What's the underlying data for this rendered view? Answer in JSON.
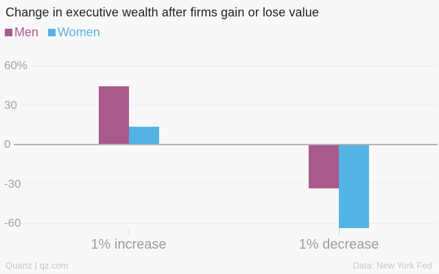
{
  "chart_data": {
    "type": "bar",
    "title": "Change in executive wealth after firms gain or lose value",
    "categories": [
      "1% increase",
      "1% decrease"
    ],
    "series": [
      {
        "name": "Men",
        "color": "#a95a8c",
        "values": [
          44,
          -33
        ]
      },
      {
        "name": "Women",
        "color": "#55b2e4",
        "values": [
          13,
          -63
        ]
      }
    ],
    "y_ticks": [
      60,
      30,
      0,
      -30,
      -60
    ],
    "y_tick_labels": [
      "60%",
      "30",
      "0",
      "-30",
      "-60"
    ],
    "ylim": [
      -75,
      66
    ],
    "unit": "%",
    "grid": true,
    "legend_position": "top-left"
  },
  "footer": {
    "credit": "Quartz | qz.com",
    "source": "Data: New York Fed"
  },
  "colors": {
    "background": "#f8f8f8",
    "grid_line": "#ebebeb",
    "zero_line": "#b3b3b3",
    "axis_text": "#a2a2a2",
    "category_text": "#9b9b9b",
    "footer_text": "#c6c6c6",
    "title_text": "#1f1f1f"
  }
}
